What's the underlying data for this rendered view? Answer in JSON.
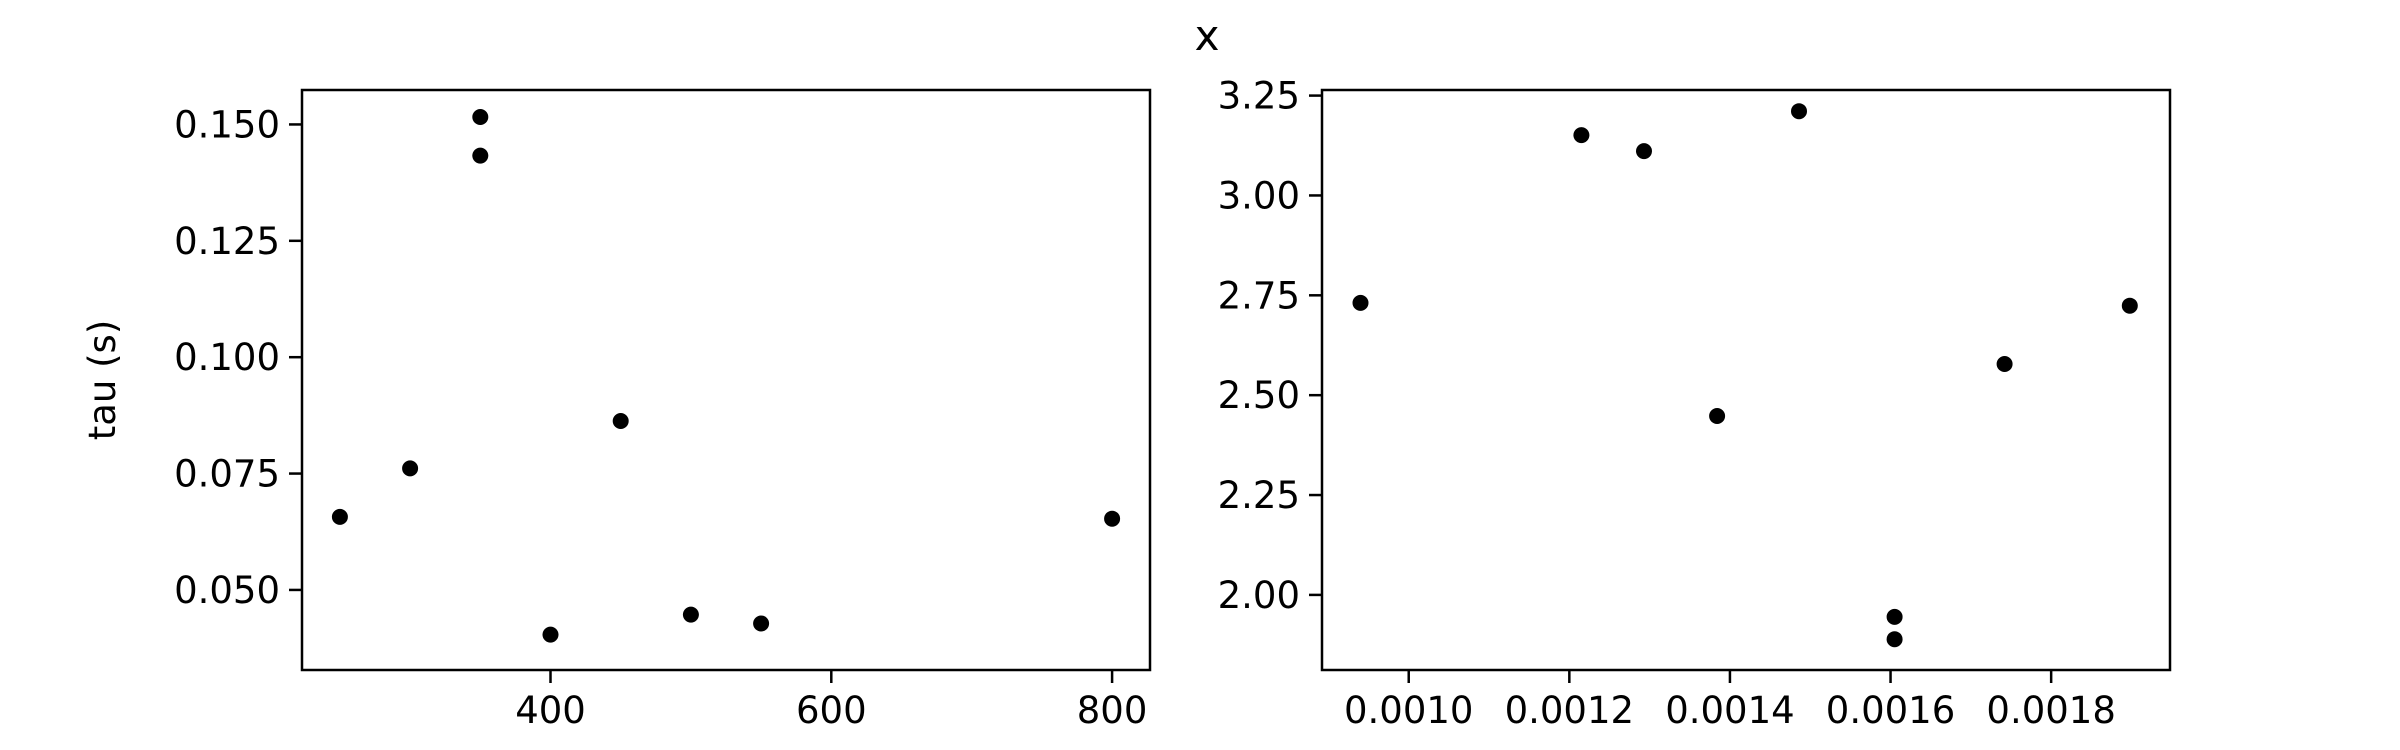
{
  "figure": {
    "title": "x"
  },
  "chart_data": [
    {
      "type": "scatter",
      "title": "",
      "xlabel": "",
      "ylabel": "tau (s)",
      "xlim": [
        223,
        827
      ],
      "ylim": [
        0.0328,
        0.1574
      ],
      "xticks": [
        400,
        600,
        800
      ],
      "xtick_labels": [
        "400",
        "600",
        "800"
      ],
      "yticks": [
        0.05,
        0.075,
        0.1,
        0.125,
        0.15
      ],
      "ytick_labels": [
        "0.050",
        "0.075",
        "0.100",
        "0.125",
        "0.150"
      ],
      "grid": false,
      "marker_color": "#000000",
      "points": [
        {
          "x": 250,
          "y": 0.0657
        },
        {
          "x": 300,
          "y": 0.0761
        },
        {
          "x": 350,
          "y": 0.1516
        },
        {
          "x": 350,
          "y": 0.1433
        },
        {
          "x": 400,
          "y": 0.0404
        },
        {
          "x": 450,
          "y": 0.0863
        },
        {
          "x": 500,
          "y": 0.0447
        },
        {
          "x": 550,
          "y": 0.0428
        },
        {
          "x": 800,
          "y": 0.0653
        }
      ]
    },
    {
      "type": "scatter",
      "title": "",
      "xlabel": "",
      "ylabel": "",
      "xlim": [
        0.000892,
        0.001948
      ],
      "ylim": [
        1.812,
        3.264
      ],
      "xticks": [
        0.001,
        0.0012,
        0.0014,
        0.0016,
        0.0018
      ],
      "xtick_labels": [
        "0.0010",
        "0.0012",
        "0.0014",
        "0.0016",
        "0.0018"
      ],
      "yticks": [
        2.0,
        2.25,
        2.5,
        2.75,
        3.0,
        3.25
      ],
      "ytick_labels": [
        "2.00",
        "2.25",
        "2.50",
        "2.75",
        "3.00",
        "3.25"
      ],
      "grid": false,
      "marker_color": "#000000",
      "points": [
        {
          "x": 0.00094,
          "y": 2.731
        },
        {
          "x": 0.001215,
          "y": 3.151
        },
        {
          "x": 0.001293,
          "y": 3.111
        },
        {
          "x": 0.001384,
          "y": 2.448
        },
        {
          "x": 0.001486,
          "y": 3.211
        },
        {
          "x": 0.001605,
          "y": 1.945
        },
        {
          "x": 0.001605,
          "y": 1.889
        },
        {
          "x": 0.001742,
          "y": 2.578
        },
        {
          "x": 0.001898,
          "y": 2.724
        }
      ]
    }
  ]
}
